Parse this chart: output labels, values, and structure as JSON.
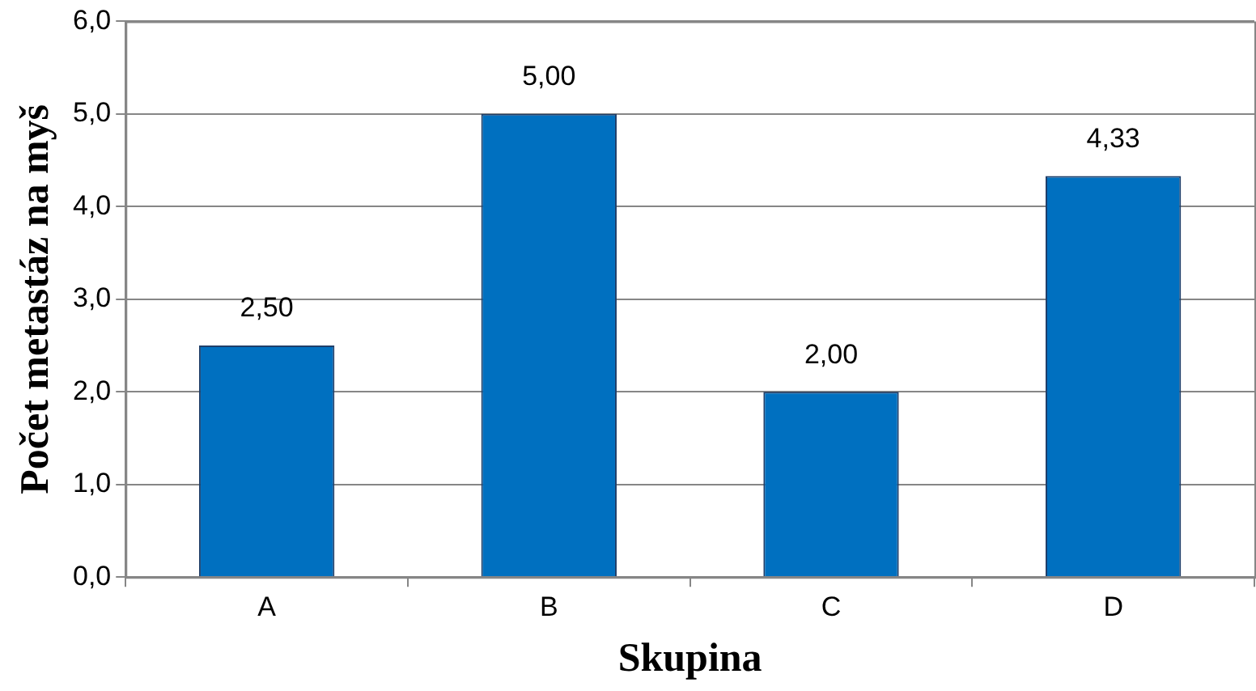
{
  "chart_data": {
    "type": "bar",
    "xlabel": "Skupina",
    "ylabel": "Počet metastáz na myš",
    "categories": [
      "A",
      "B",
      "C",
      "D"
    ],
    "values": [
      2.5,
      5.0,
      2.0,
      4.33
    ],
    "value_labels": [
      "2,50",
      "5,00",
      "2,00",
      "4,33"
    ],
    "color": "#0070c0",
    "ylim": [
      0,
      6
    ],
    "yticks": [
      {
        "value": 0,
        "label": "0,0"
      },
      {
        "value": 1,
        "label": "1,0"
      },
      {
        "value": 2,
        "label": "2,0"
      },
      {
        "value": 3,
        "label": "3,0"
      },
      {
        "value": 4,
        "label": "4,0"
      },
      {
        "value": 5,
        "label": "5,0"
      },
      {
        "value": 6,
        "label": "6,0"
      }
    ],
    "grid": "y",
    "legend": false
  }
}
